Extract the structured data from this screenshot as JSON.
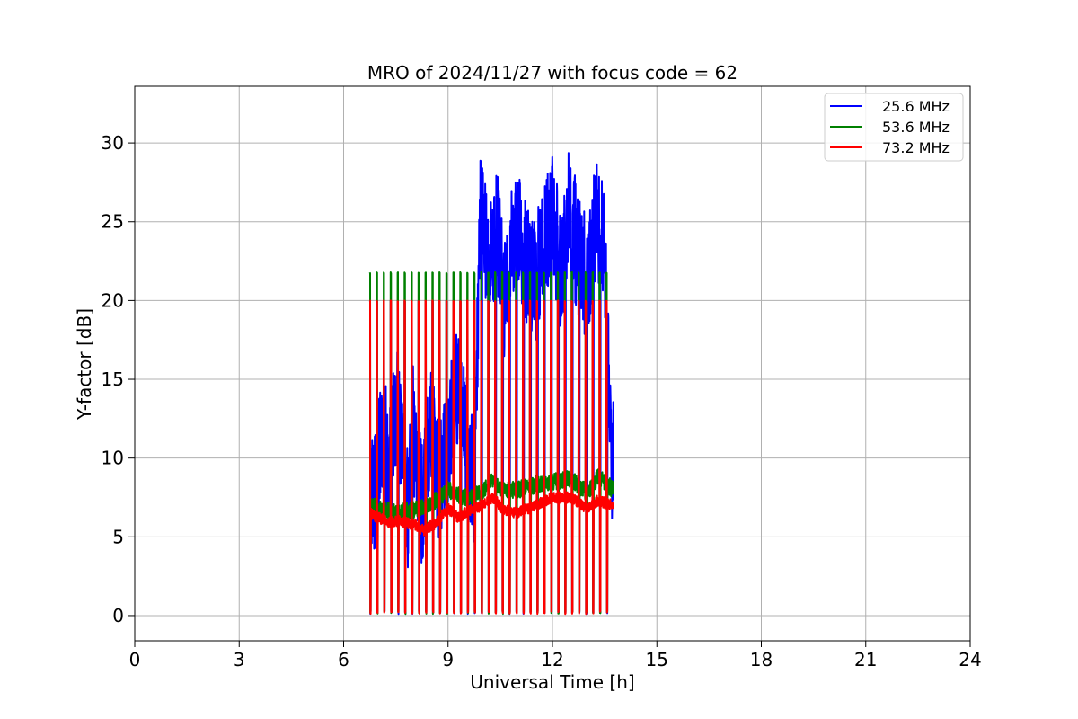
{
  "chart_data": {
    "type": "line",
    "title": "MRO of 2024/11/27 with focus code = 62",
    "xlabel": "Universal Time [h]",
    "ylabel": "Y-factor [dB]",
    "xlim": [
      0,
      24
    ],
    "ylim": [
      -1.6,
      33.6
    ],
    "xticks": [
      0,
      3,
      6,
      9,
      12,
      15,
      18,
      21,
      24
    ],
    "yticks": [
      0,
      5,
      10,
      15,
      20,
      25,
      30
    ],
    "grid": true,
    "legend_position": "top-right",
    "series": [
      {
        "name": "25.6 MHz",
        "color": "#0000ff",
        "pattern": "calibration-cycles",
        "cal_high": 20.0,
        "cal_low": 0.1,
        "baseline": [
          [
            6.75,
            9.0
          ],
          [
            6.9,
            7.5
          ],
          [
            7.1,
            12.0
          ],
          [
            7.3,
            9.5
          ],
          [
            7.5,
            13.5
          ],
          [
            7.7,
            11.0
          ],
          [
            7.85,
            6.5
          ],
          [
            8.0,
            12.0
          ],
          [
            8.25,
            7.0
          ],
          [
            8.5,
            12.0
          ],
          [
            8.75,
            8.0
          ],
          [
            9.0,
            11.0
          ],
          [
            9.25,
            14.0
          ],
          [
            9.5,
            12.0
          ],
          [
            9.75,
            8.0
          ],
          [
            9.95,
            28.0
          ],
          [
            10.15,
            21.5
          ],
          [
            10.4,
            25.0
          ],
          [
            10.6,
            20.0
          ],
          [
            10.8,
            23.0
          ],
          [
            11.0,
            25.0
          ],
          [
            11.25,
            22.5
          ],
          [
            11.5,
            21.0
          ],
          [
            11.75,
            24.0
          ],
          [
            12.0,
            25.5
          ],
          [
            12.25,
            22.0
          ],
          [
            12.5,
            26.0
          ],
          [
            12.75,
            22.5
          ],
          [
            13.0,
            21.5
          ],
          [
            13.25,
            25.0
          ],
          [
            13.5,
            23.0
          ],
          [
            13.7,
            10.0
          ]
        ],
        "noise": 4.0
      },
      {
        "name": "53.6 MHz",
        "color": "#008000",
        "pattern": "calibration-cycles",
        "cal_high": 21.8,
        "cal_low": 0.1,
        "baseline": [
          [
            6.75,
            7.0
          ],
          [
            7.5,
            6.5
          ],
          [
            8.0,
            6.7
          ],
          [
            8.5,
            7.0
          ],
          [
            9.0,
            8.0
          ],
          [
            9.5,
            7.5
          ],
          [
            9.9,
            7.7
          ],
          [
            10.2,
            8.5
          ],
          [
            10.6,
            8.0
          ],
          [
            11.0,
            8.0
          ],
          [
            11.5,
            8.3
          ],
          [
            12.0,
            8.5
          ],
          [
            12.5,
            8.7
          ],
          [
            13.0,
            7.8
          ],
          [
            13.3,
            8.8
          ],
          [
            13.75,
            8.0
          ]
        ],
        "noise": 0.55
      },
      {
        "name": "73.2 MHz",
        "color": "#ff0000",
        "pattern": "calibration-cycles",
        "cal_high": 20.0,
        "cal_low": 0.1,
        "baseline": [
          [
            6.75,
            6.5
          ],
          [
            7.0,
            6.2
          ],
          [
            7.3,
            5.9
          ],
          [
            7.6,
            6.0
          ],
          [
            8.0,
            5.8
          ],
          [
            8.3,
            5.4
          ],
          [
            8.6,
            5.8
          ],
          [
            9.0,
            6.8
          ],
          [
            9.3,
            6.2
          ],
          [
            9.6,
            6.7
          ],
          [
            10.0,
            7.0
          ],
          [
            10.3,
            7.5
          ],
          [
            10.6,
            6.7
          ],
          [
            11.0,
            6.5
          ],
          [
            11.5,
            7.0
          ],
          [
            12.0,
            7.5
          ],
          [
            12.5,
            7.5
          ],
          [
            13.0,
            6.8
          ],
          [
            13.3,
            7.3
          ],
          [
            13.75,
            7.0
          ]
        ],
        "noise": 0.35
      }
    ],
    "cycle_period_h": 0.2,
    "data_range_h": [
      6.75,
      13.75
    ]
  }
}
